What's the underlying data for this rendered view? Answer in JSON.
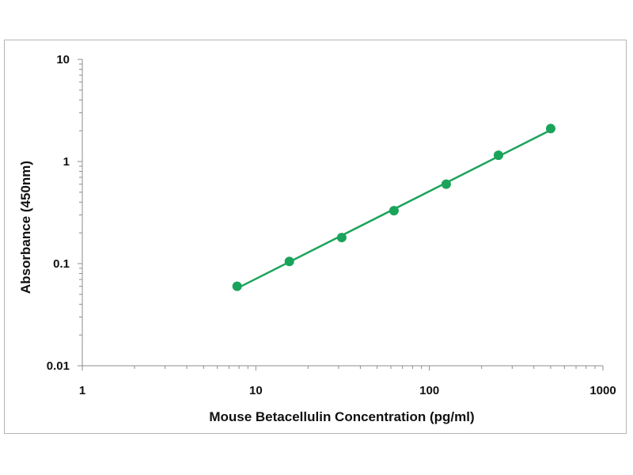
{
  "chart_data": {
    "type": "scatter",
    "title": "",
    "xlabel": "Mouse Betacellulin Concentration (pg/ml)",
    "ylabel": "Absorbance (450nm)",
    "xscale": "log",
    "yscale": "log",
    "xlim": [
      1,
      1000
    ],
    "ylim": [
      0.01,
      10
    ],
    "x_ticks": [
      "1",
      "10",
      "100",
      "1000"
    ],
    "y_ticks": [
      "10",
      "1",
      "0.1",
      "0.01"
    ],
    "grid": false,
    "legend": "none",
    "series": [
      {
        "x": [
          7.8,
          15.6,
          31.25,
          62.5,
          125,
          250,
          500
        ],
        "y": [
          0.06,
          0.105,
          0.18,
          0.33,
          0.6,
          1.15,
          2.1
        ],
        "color": "#1aa35a",
        "marker": "circle",
        "line": "fit"
      }
    ]
  }
}
